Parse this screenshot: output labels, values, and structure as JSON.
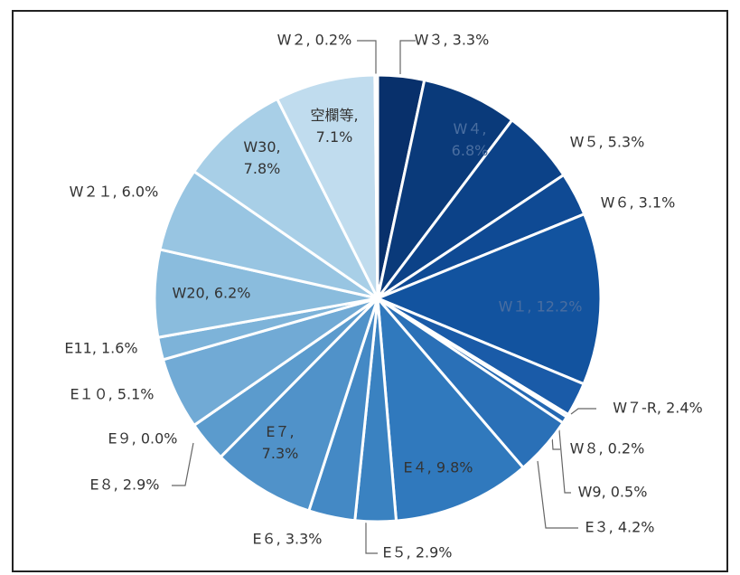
{
  "chart_data": {
    "type": "pie",
    "values": [
      3.3,
      6.8,
      5.3,
      3.1,
      12.2,
      2.4,
      0.2,
      0.5,
      4.2,
      9.8,
      2.9,
      3.3,
      7.3,
      2.9,
      0.0,
      5.1,
      1.6,
      6.2,
      6.0,
      7.8,
      7.1,
      0.2
    ],
    "value_labels": [
      "W３, 3.3%",
      "W４, 6.8%",
      "W５, 5.3%",
      "W６, 3.1%",
      "W１, 12.2%",
      "W７-R, 2.4%",
      "W８, 0.2%",
      "W9, 0.5%",
      "E３, 4.2%",
      "E４, 9.8%",
      "E５, 2.9%",
      "E６, 3.3%",
      "E７, 7.3%",
      "E８, 2.9%",
      "E９, 0.0%",
      "E１０, 5.1%",
      "E11, 1.6%",
      "W20, 6.2%",
      "W２１, 6.0%",
      "W30, 7.8%",
      "空欄等, 7.1%",
      "W２, 0.2%"
    ],
    "colors": [
      "#08306b",
      "#0a3a7a",
      "#0c4288",
      "#0f4a94",
      "#12539f",
      "#1a5ba8",
      "#1f62ae",
      "#2468b2",
      "#2a70b7",
      "#3079bd",
      "#3a82c1",
      "#4489c5",
      "#5092c9",
      "#5b9bcd",
      "#66a3d1",
      "#71aad5",
      "#7db3d9",
      "#8abcdd",
      "#98c5e2",
      "#a8cfe7",
      "#c0dcee",
      "#d6e7f4"
    ]
  }
}
